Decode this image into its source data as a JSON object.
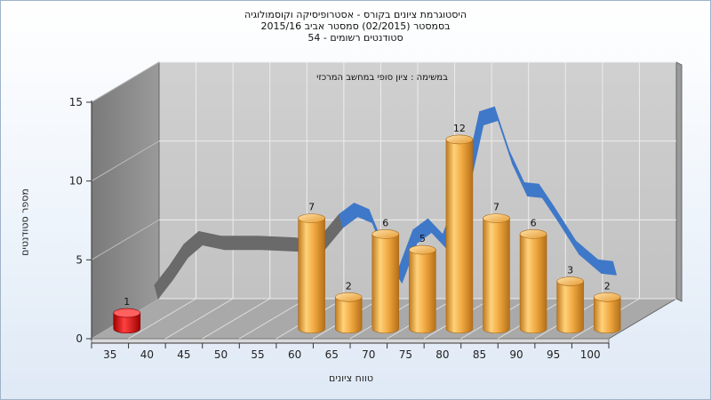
{
  "chart_data": {
    "type": "bar",
    "title_lines": [
      "היסטוגרמת ציונים בקורס - אסטרופיסיקה וקוסמולוגיה",
      "בסמסטר  (02/2015)  סמסטר אביב 2015/16",
      "סטודנטים רשומים - 54"
    ],
    "annotation": "במשימה : ציון סופי במחשב המרכזי",
    "xlabel": "טווח ציונים",
    "ylabel": "מספר סטודנטים",
    "ylim": [
      0,
      15
    ],
    "yticks": [
      "0",
      "5",
      "10",
      "15"
    ],
    "categories": [
      "35",
      "40",
      "45",
      "50",
      "55",
      "60",
      "65",
      "70",
      "75",
      "80",
      "85",
      "90",
      "95",
      "100"
    ],
    "bars": [
      {
        "x": 35,
        "value": 1,
        "label": "1",
        "color": "#e01010"
      },
      {
        "x": 60,
        "value": 7,
        "label": "7",
        "color": "#f0a840"
      },
      {
        "x": 65,
        "value": 2,
        "label": "2",
        "color": "#f0a840"
      },
      {
        "x": 70,
        "value": 6,
        "label": "6",
        "color": "#f0a840"
      },
      {
        "x": 75,
        "value": 5,
        "label": "5",
        "color": "#f0a840"
      },
      {
        "x": 80,
        "value": 12,
        "label": "12",
        "color": "#f0a840"
      },
      {
        "x": 85,
        "value": 7,
        "label": "7",
        "color": "#f0a840"
      },
      {
        "x": 90,
        "value": 6,
        "label": "6",
        "color": "#f0a840"
      },
      {
        "x": 95,
        "value": 3,
        "label": "3",
        "color": "#f0a840"
      },
      {
        "x": 100,
        "value": 2,
        "label": "2",
        "color": "#f0a840"
      }
    ],
    "curve": {
      "color_hidden": "#6a6a6a",
      "color_visible": "#3f78c8",
      "points": [
        {
          "x": 36,
          "y": 2.0
        },
        {
          "x": 38,
          "y": 3.2
        },
        {
          "x": 40,
          "y": 4.6
        },
        {
          "x": 42,
          "y": 5.4
        },
        {
          "x": 45,
          "y": 5.1
        },
        {
          "x": 50,
          "y": 5.1
        },
        {
          "x": 55,
          "y": 5.0
        },
        {
          "x": 58,
          "y": 4.8
        },
        {
          "x": 61,
          "y": 6.5
        },
        {
          "x": 63,
          "y": 7.2
        },
        {
          "x": 65,
          "y": 6.8
        },
        {
          "x": 67,
          "y": 4.5
        },
        {
          "x": 69,
          "y": 3.0
        },
        {
          "x": 71,
          "y": 5.5
        },
        {
          "x": 73,
          "y": 6.2
        },
        {
          "x": 75,
          "y": 5.2
        },
        {
          "x": 78,
          "y": 8.8
        },
        {
          "x": 80,
          "y": 13.0
        },
        {
          "x": 82,
          "y": 13.3
        },
        {
          "x": 84,
          "y": 10.5
        },
        {
          "x": 86,
          "y": 8.5
        },
        {
          "x": 88,
          "y": 8.4
        },
        {
          "x": 90,
          "y": 7.0
        },
        {
          "x": 93,
          "y": 4.8
        },
        {
          "x": 96,
          "y": 3.6
        },
        {
          "x": 98,
          "y": 3.5
        }
      ]
    },
    "colors": {
      "back_wall": "#c9c9c9",
      "side_wall": "#8a8a8a",
      "floor": "#a8a8a8",
      "grid": "#e6e6e6"
    }
  }
}
